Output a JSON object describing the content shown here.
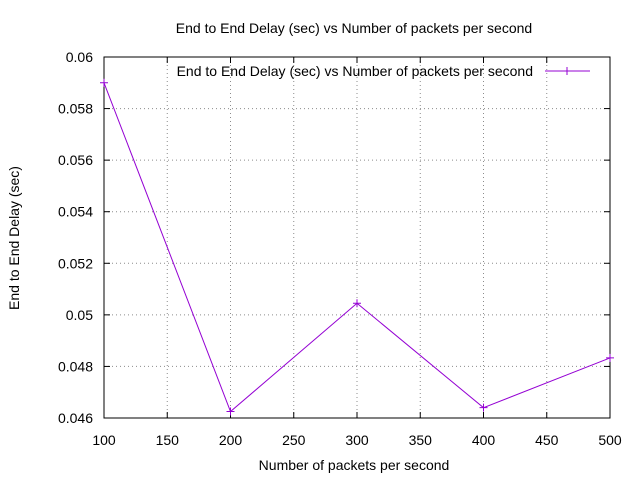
{
  "chart_data": {
    "type": "line",
    "title": "End to End Delay (sec) vs Number of packets per second",
    "xlabel": "Number of packets per second",
    "ylabel": "End to End Delay (sec)",
    "xlim": [
      100,
      500
    ],
    "ylim": [
      0.046,
      0.06
    ],
    "x_ticks": [
      "100",
      "150",
      "200",
      "250",
      "300",
      "350",
      "400",
      "450",
      "500"
    ],
    "y_ticks": [
      "0.046",
      "0.048",
      "0.05",
      "0.052",
      "0.054",
      "0.056",
      "0.058",
      "0.06"
    ],
    "grid": true,
    "legend_position": "top-right",
    "series": [
      {
        "name": "End to End Delay (sec) vs Number of packets per second",
        "color": "#9400d3",
        "marker": "plus",
        "x": [
          100,
          200,
          300,
          400,
          500
        ],
        "y": [
          0.059,
          0.04625,
          0.05045,
          0.0464,
          0.04833
        ]
      }
    ]
  }
}
